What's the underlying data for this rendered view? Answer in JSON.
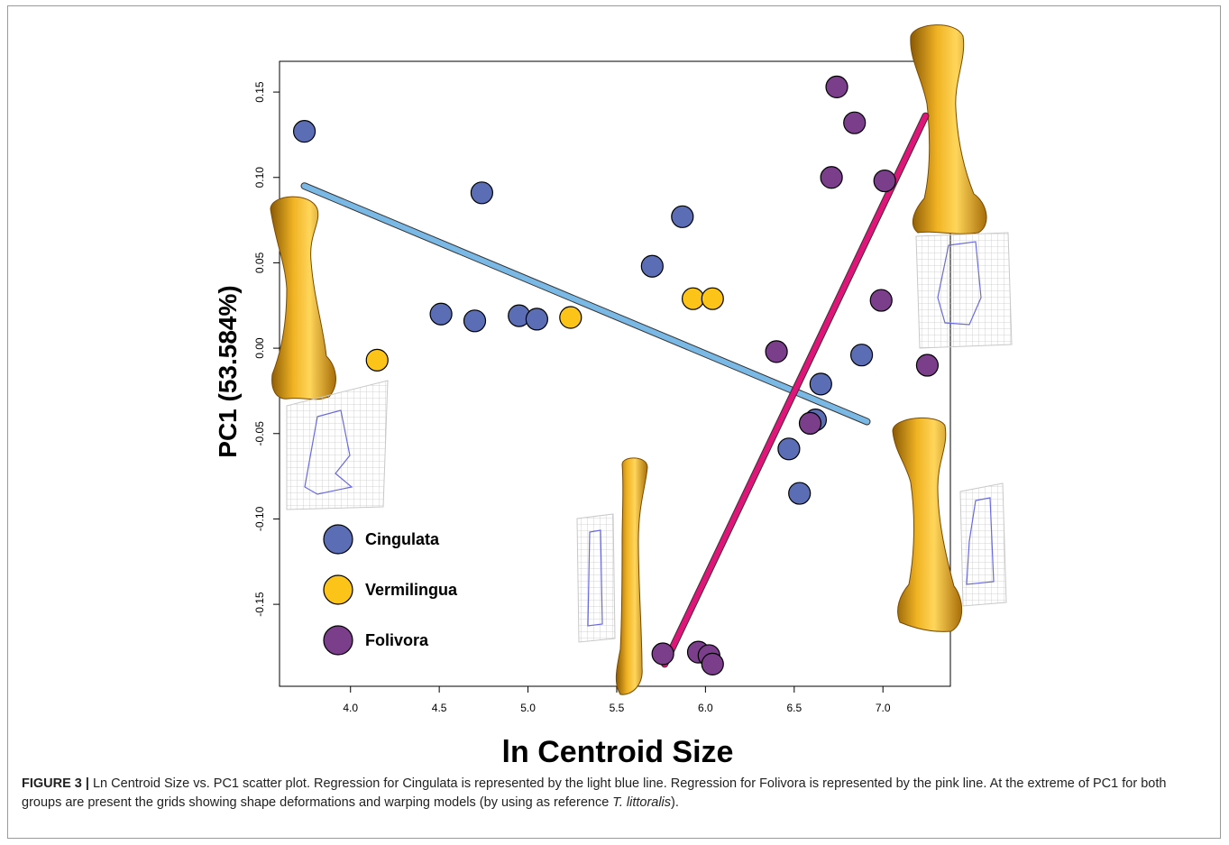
{
  "chart_data": {
    "type": "scatter",
    "xlabel": "ln Centroid Size",
    "ylabel": "PC1 (53.584%)",
    "xlim": [
      3.6,
      7.38
    ],
    "ylim": [
      -0.198,
      0.168
    ],
    "xticks": [
      "4.0",
      "4.5",
      "5.0",
      "5.5",
      "6.0",
      "6.5",
      "7.0"
    ],
    "yticks": [
      "-0.15",
      "-0.10",
      "-0.05",
      "0.00",
      "0.05",
      "0.10",
      "0.15"
    ],
    "legend_position": "bottom-left",
    "grid": false,
    "series": [
      {
        "name": "Cingulata",
        "color": "#5b6eb5",
        "points": [
          [
            3.74,
            0.127
          ],
          [
            4.74,
            0.091
          ],
          [
            5.87,
            0.077
          ],
          [
            5.7,
            0.048
          ],
          [
            4.51,
            0.02
          ],
          [
            4.7,
            0.016
          ],
          [
            4.95,
            0.019
          ],
          [
            5.05,
            0.017
          ],
          [
            6.88,
            -0.004
          ],
          [
            6.65,
            -0.021
          ],
          [
            6.62,
            -0.042
          ],
          [
            6.47,
            -0.059
          ],
          [
            6.53,
            -0.085
          ]
        ]
      },
      {
        "name": "Vermilingua",
        "color": "#fcc419",
        "points": [
          [
            4.15,
            -0.007
          ],
          [
            5.24,
            0.018
          ],
          [
            5.93,
            0.029
          ],
          [
            6.04,
            0.029
          ]
        ]
      },
      {
        "name": "Folivora",
        "color": "#7a3e8a",
        "points": [
          [
            6.74,
            0.153
          ],
          [
            6.84,
            0.132
          ],
          [
            6.71,
            0.1
          ],
          [
            7.01,
            0.098
          ],
          [
            6.99,
            0.028
          ],
          [
            6.4,
            -0.002
          ],
          [
            7.25,
            -0.01
          ],
          [
            6.59,
            -0.044
          ],
          [
            5.76,
            -0.179
          ],
          [
            5.96,
            -0.178
          ],
          [
            6.02,
            -0.18
          ],
          [
            6.04,
            -0.185
          ]
        ]
      }
    ],
    "regressions": [
      {
        "group": "Cingulata",
        "color": "#7ab8e6",
        "x": [
          3.74,
          6.91
        ],
        "y": [
          0.095,
          -0.043
        ]
      },
      {
        "group": "Folivora",
        "color": "#e0157a",
        "x": [
          5.77,
          7.24
        ],
        "y": [
          -0.185,
          0.136
        ]
      }
    ],
    "bone_color": "#d99a12",
    "grid_color": "#c8c8c8",
    "wireframe_color": "#6a6ae0"
  },
  "caption": {
    "label": "FIGURE 3 |",
    "text_before": " Ln Centroid Size vs. PC1 scatter plot. Regression for Cingulata is represented by the light blue line. Regression for Folivora is represented by the pink line. At the extreme of PC1 for both groups are present the grids showing shape deformations and warping models (by using as reference ",
    "species": "T. littoralis",
    "text_after": ")."
  }
}
